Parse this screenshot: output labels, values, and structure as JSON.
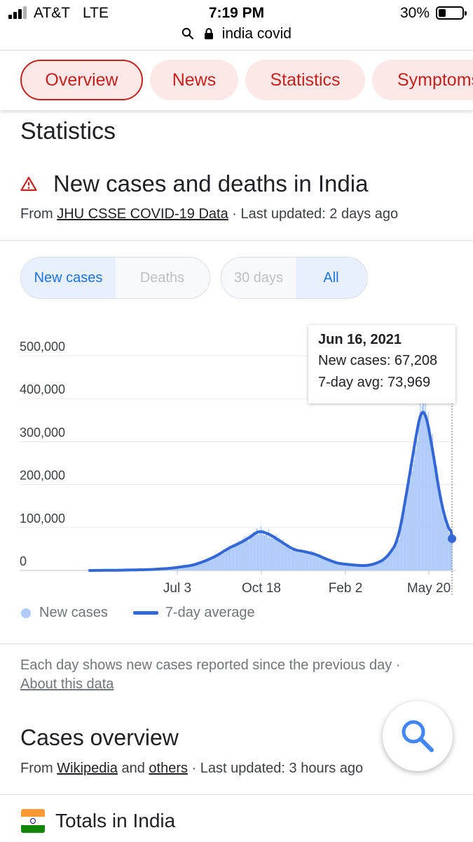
{
  "status_bar": {
    "carrier": "AT&T",
    "network": "LTE",
    "time": "7:19 PM",
    "battery": "30%"
  },
  "url_bar": {
    "query": "india covid"
  },
  "tabs": [
    {
      "label": "Overview"
    },
    {
      "label": "News"
    },
    {
      "label": "Statistics"
    },
    {
      "label": "Symptoms"
    }
  ],
  "section_heading": "Statistics",
  "card": {
    "title": "New cases and deaths in India",
    "source_prefix": "From ",
    "source_link": "JHU CSSE COVID-19 Data",
    "updated": " · Last updated: 2 days ago"
  },
  "toggles": {
    "metric": [
      "New cases",
      "Deaths"
    ],
    "range": [
      "30 days",
      "All"
    ]
  },
  "tooltip": {
    "date": "Jun 16, 2021",
    "new_cases": "New cases: 67,208",
    "avg": "7-day avg: 73,969"
  },
  "chart_data": {
    "type": "area",
    "y_ticks": [
      "500,000",
      "400,000",
      "300,000",
      "200,000",
      "100,000",
      "0"
    ],
    "ylim": [
      0,
      500000
    ],
    "x_ticks": [
      "Jul 3",
      "Oct 18",
      "Feb 2",
      "May 20"
    ],
    "grid": true,
    "legend_position": "bottom-left",
    "series": [
      {
        "name": "New cases",
        "color": "#aecbfa"
      },
      {
        "name": "7-day average",
        "color": "#3367d6"
      }
    ],
    "x": [
      "2020-01-22",
      "2020-03-01",
      "2020-04-15",
      "2020-05-15",
      "2020-06-15",
      "2020-07-03",
      "2020-07-20",
      "2020-08-05",
      "2020-08-20",
      "2020-09-05",
      "2020-09-16",
      "2020-10-01",
      "2020-10-18",
      "2020-11-05",
      "2020-11-20",
      "2020-12-05",
      "2020-12-20",
      "2021-01-05",
      "2021-01-20",
      "2021-02-02",
      "2021-02-15",
      "2021-03-01",
      "2021-03-15",
      "2021-04-01",
      "2021-04-15",
      "2021-05-01",
      "2021-05-07",
      "2021-05-20",
      "2021-06-01",
      "2021-06-16"
    ],
    "seven_day_avg": [
      0,
      500,
      2000,
      5000,
      12000,
      22000,
      35000,
      52000,
      63000,
      78000,
      93000,
      85000,
      67000,
      48000,
      44000,
      38000,
      27000,
      17000,
      14000,
      12000,
      11000,
      16000,
      28000,
      68000,
      200000,
      360000,
      392000,
      280000,
      150000,
      73969
    ]
  },
  "legend": {
    "new_cases": "New cases",
    "avg": "7-day average"
  },
  "note": {
    "text": "Each day shows new cases reported since the previous day",
    "sep": " ·",
    "link": "About this data"
  },
  "cases_overview": {
    "heading": "Cases overview",
    "from": "From ",
    "link1": "Wikipedia",
    "and": " and ",
    "link2": "others",
    "updated": " · Last updated: 3 hours ago"
  },
  "totals": {
    "label": "Totals in India"
  },
  "colors": {
    "accent": "#c5221f",
    "chart_line": "#3367d6",
    "chart_fill": "#aecbfa",
    "toggle_active": "#1a73e8"
  }
}
